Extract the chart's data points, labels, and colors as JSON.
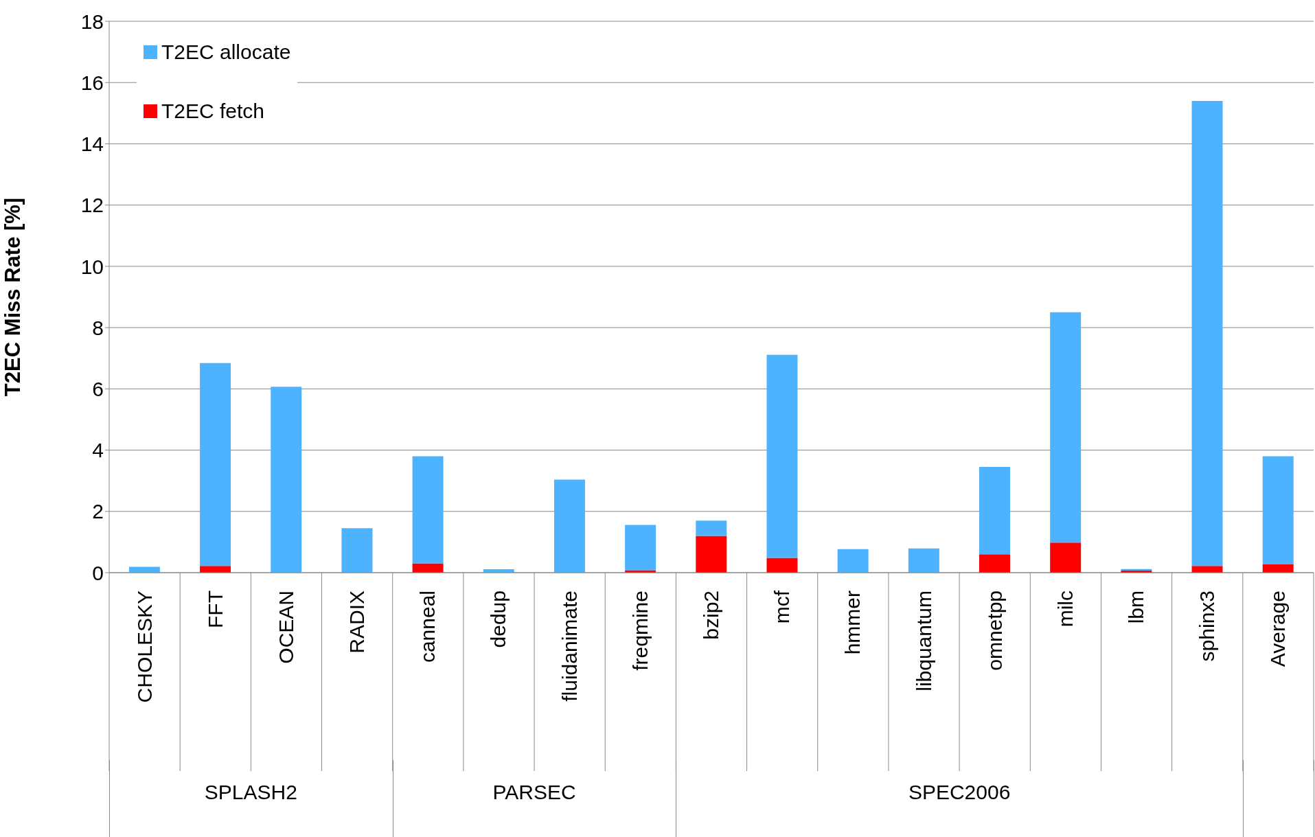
{
  "chart_data": {
    "type": "bar",
    "stacked": true,
    "ylabel": "T2EC Miss Rate [%]",
    "categories": [
      "CHOLESKY",
      "FFT",
      "OCEAN",
      "RADIX",
      "canneal",
      "dedup",
      "fluidanimate",
      "freqmine",
      "bzip2",
      "mcf",
      "hmmer",
      "libquantum",
      "omnetpp",
      "milc",
      "lbm",
      "sphinx3",
      "Average"
    ],
    "series": [
      {
        "name": "T2EC fetch",
        "color": "#ff0000",
        "values": [
          0,
          0.22,
          0,
          0,
          0.3,
          0,
          0,
          0.08,
          1.2,
          0.48,
          0,
          0,
          0.6,
          0.98,
          0.07,
          0.22,
          0.27
        ]
      },
      {
        "name": "T2EC allocate",
        "color": "#4db3ff",
        "values": [
          0.19,
          6.62,
          6.07,
          1.45,
          3.5,
          0.11,
          3.04,
          1.48,
          0.5,
          6.63,
          0.77,
          0.79,
          2.85,
          7.52,
          0.05,
          15.18,
          3.53
        ]
      }
    ],
    "ylim": [
      0,
      18
    ],
    "yticks": [
      0,
      2,
      4,
      6,
      8,
      10,
      12,
      14,
      16,
      18
    ],
    "grid": "y",
    "legend": "top left",
    "annotations": [
      "SPLASH2",
      "PARSEC",
      "SPEC2006"
    ]
  }
}
